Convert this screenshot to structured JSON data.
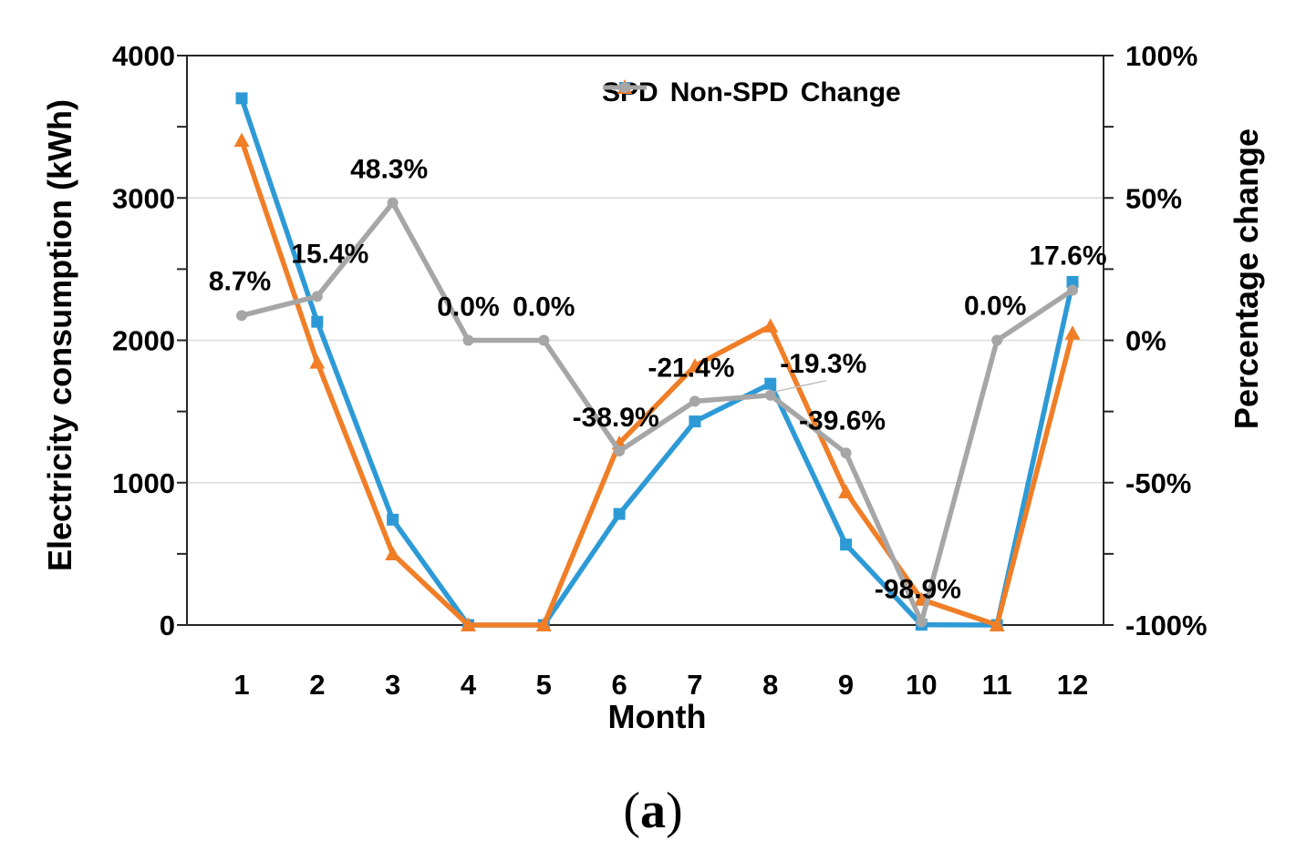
{
  "figure": {
    "caption": {
      "open": "(",
      "letter": "a",
      "close": ")"
    }
  },
  "chart_data": {
    "type": "line",
    "x_categories": [
      "1",
      "2",
      "3",
      "4",
      "5",
      "6",
      "7",
      "8",
      "9",
      "10",
      "11",
      "12"
    ],
    "xlabel": "Month",
    "y_left": {
      "label": "Electricity consumption (kWh)",
      "lim": [
        0,
        4000
      ],
      "ticks": [
        {
          "value": 0,
          "label": "0"
        },
        {
          "value": 1000,
          "label": "1000"
        },
        {
          "value": 2000,
          "label": "2000"
        },
        {
          "value": 3000,
          "label": "3000"
        },
        {
          "value": 4000,
          "label": "4000"
        }
      ],
      "minor_tick_step": 500,
      "gridlines": [
        1000,
        2000,
        3000
      ]
    },
    "y_right": {
      "label": "Percentage change",
      "lim": [
        -100,
        100
      ],
      "ticks": [
        {
          "value": 100,
          "label": "100%"
        },
        {
          "value": 50,
          "label": "50%"
        },
        {
          "value": 0,
          "label": "0%"
        },
        {
          "value": -50,
          "label": "-50%"
        },
        {
          "value": -100,
          "label": "-100%"
        }
      ],
      "minor_tick_step": 25
    },
    "legend": {
      "position": "top-inside",
      "entries": [
        {
          "label": "SPD",
          "marker": "square",
          "color": "#2D9AD6"
        },
        {
          "label": "Non-SPD",
          "marker": "triangle",
          "color": "#F07E27"
        },
        {
          "label": "Change",
          "marker": "circle",
          "color": "#A6A6A6"
        }
      ]
    },
    "series": [
      {
        "name": "SPD",
        "axis": "left",
        "color": "#2D9AD6",
        "marker": "square",
        "values": [
          3700,
          2130,
          740,
          0,
          0,
          780,
          1430,
          1695,
          565,
          2,
          0,
          2410
        ]
      },
      {
        "name": "Non-SPD",
        "axis": "left",
        "color": "#F07E27",
        "marker": "triangle",
        "values": [
          3404,
          1846,
          499,
          0,
          0,
          1277,
          1820,
          2100,
          935,
          180,
          0,
          2050
        ]
      },
      {
        "name": "Change",
        "axis": "right",
        "color": "#A6A6A6",
        "marker": "circle",
        "values": [
          8.7,
          15.4,
          48.3,
          0.0,
          0.0,
          -38.9,
          -21.4,
          -19.3,
          -39.6,
          -98.9,
          0.0,
          17.6
        ],
        "labels": [
          {
            "text": "8.7%",
            "dx": -2,
            "dy": -28
          },
          {
            "text": "15.4%",
            "dx": 14,
            "dy": -37
          },
          {
            "text": "48.3%",
            "dx": -4,
            "dy": -27
          },
          {
            "text": "0.0%",
            "dx": 0,
            "dy": -27
          },
          {
            "text": "0.0%",
            "dx": 0,
            "dy": -27
          },
          {
            "text": "-38.9%",
            "dx": -4,
            "dy": -27
          },
          {
            "text": "-21.4%",
            "dx": -4,
            "dy": -27
          },
          {
            "text": "-19.3%",
            "dx": 58,
            "dy": -25,
            "leader": true
          },
          {
            "text": "-39.6%",
            "dx": -4,
            "dy": -26
          },
          {
            "text": "-98.9%",
            "dx": -4,
            "dy": -26
          },
          {
            "text": "0.0%",
            "dx": -2,
            "dy": -28
          },
          {
            "text": "17.6%",
            "dx": -5,
            "dy": -28
          }
        ]
      }
    ],
    "frame_color": "#262626",
    "gridline_color": "#D9D9D9",
    "leader_line_color": "#BFBFBF"
  }
}
